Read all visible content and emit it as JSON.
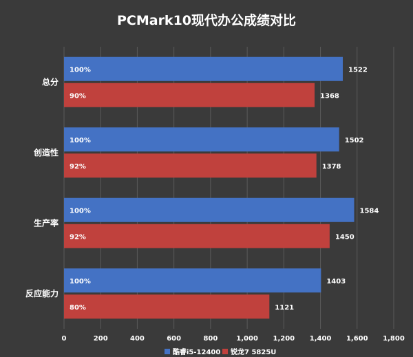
{
  "chart_data": {
    "type": "bar",
    "orientation": "horizontal",
    "title": "PCMark10现代办公成绩对比",
    "categories": [
      "总分",
      "创造性",
      "生产率",
      "反应能力"
    ],
    "series": [
      {
        "name": "酷睿i5-12400",
        "color": "#4472c4",
        "values": [
          1522,
          1502,
          1584,
          1403
        ],
        "percent_labels": [
          "100%",
          "100%",
          "100%",
          "100%"
        ]
      },
      {
        "name": "锐龙7 5825U",
        "color": "#c0413d",
        "values": [
          1368,
          1378,
          1450,
          1121
        ],
        "percent_labels": [
          "90%",
          "92%",
          "92%",
          "80%"
        ]
      }
    ],
    "xlim": [
      0,
      1800
    ],
    "x_ticks": [
      "0",
      "200",
      "400",
      "600",
      "800",
      "1,000",
      "1,200",
      "1,400",
      "1,600",
      "1,800"
    ],
    "grid": true,
    "legend": "bottom"
  }
}
